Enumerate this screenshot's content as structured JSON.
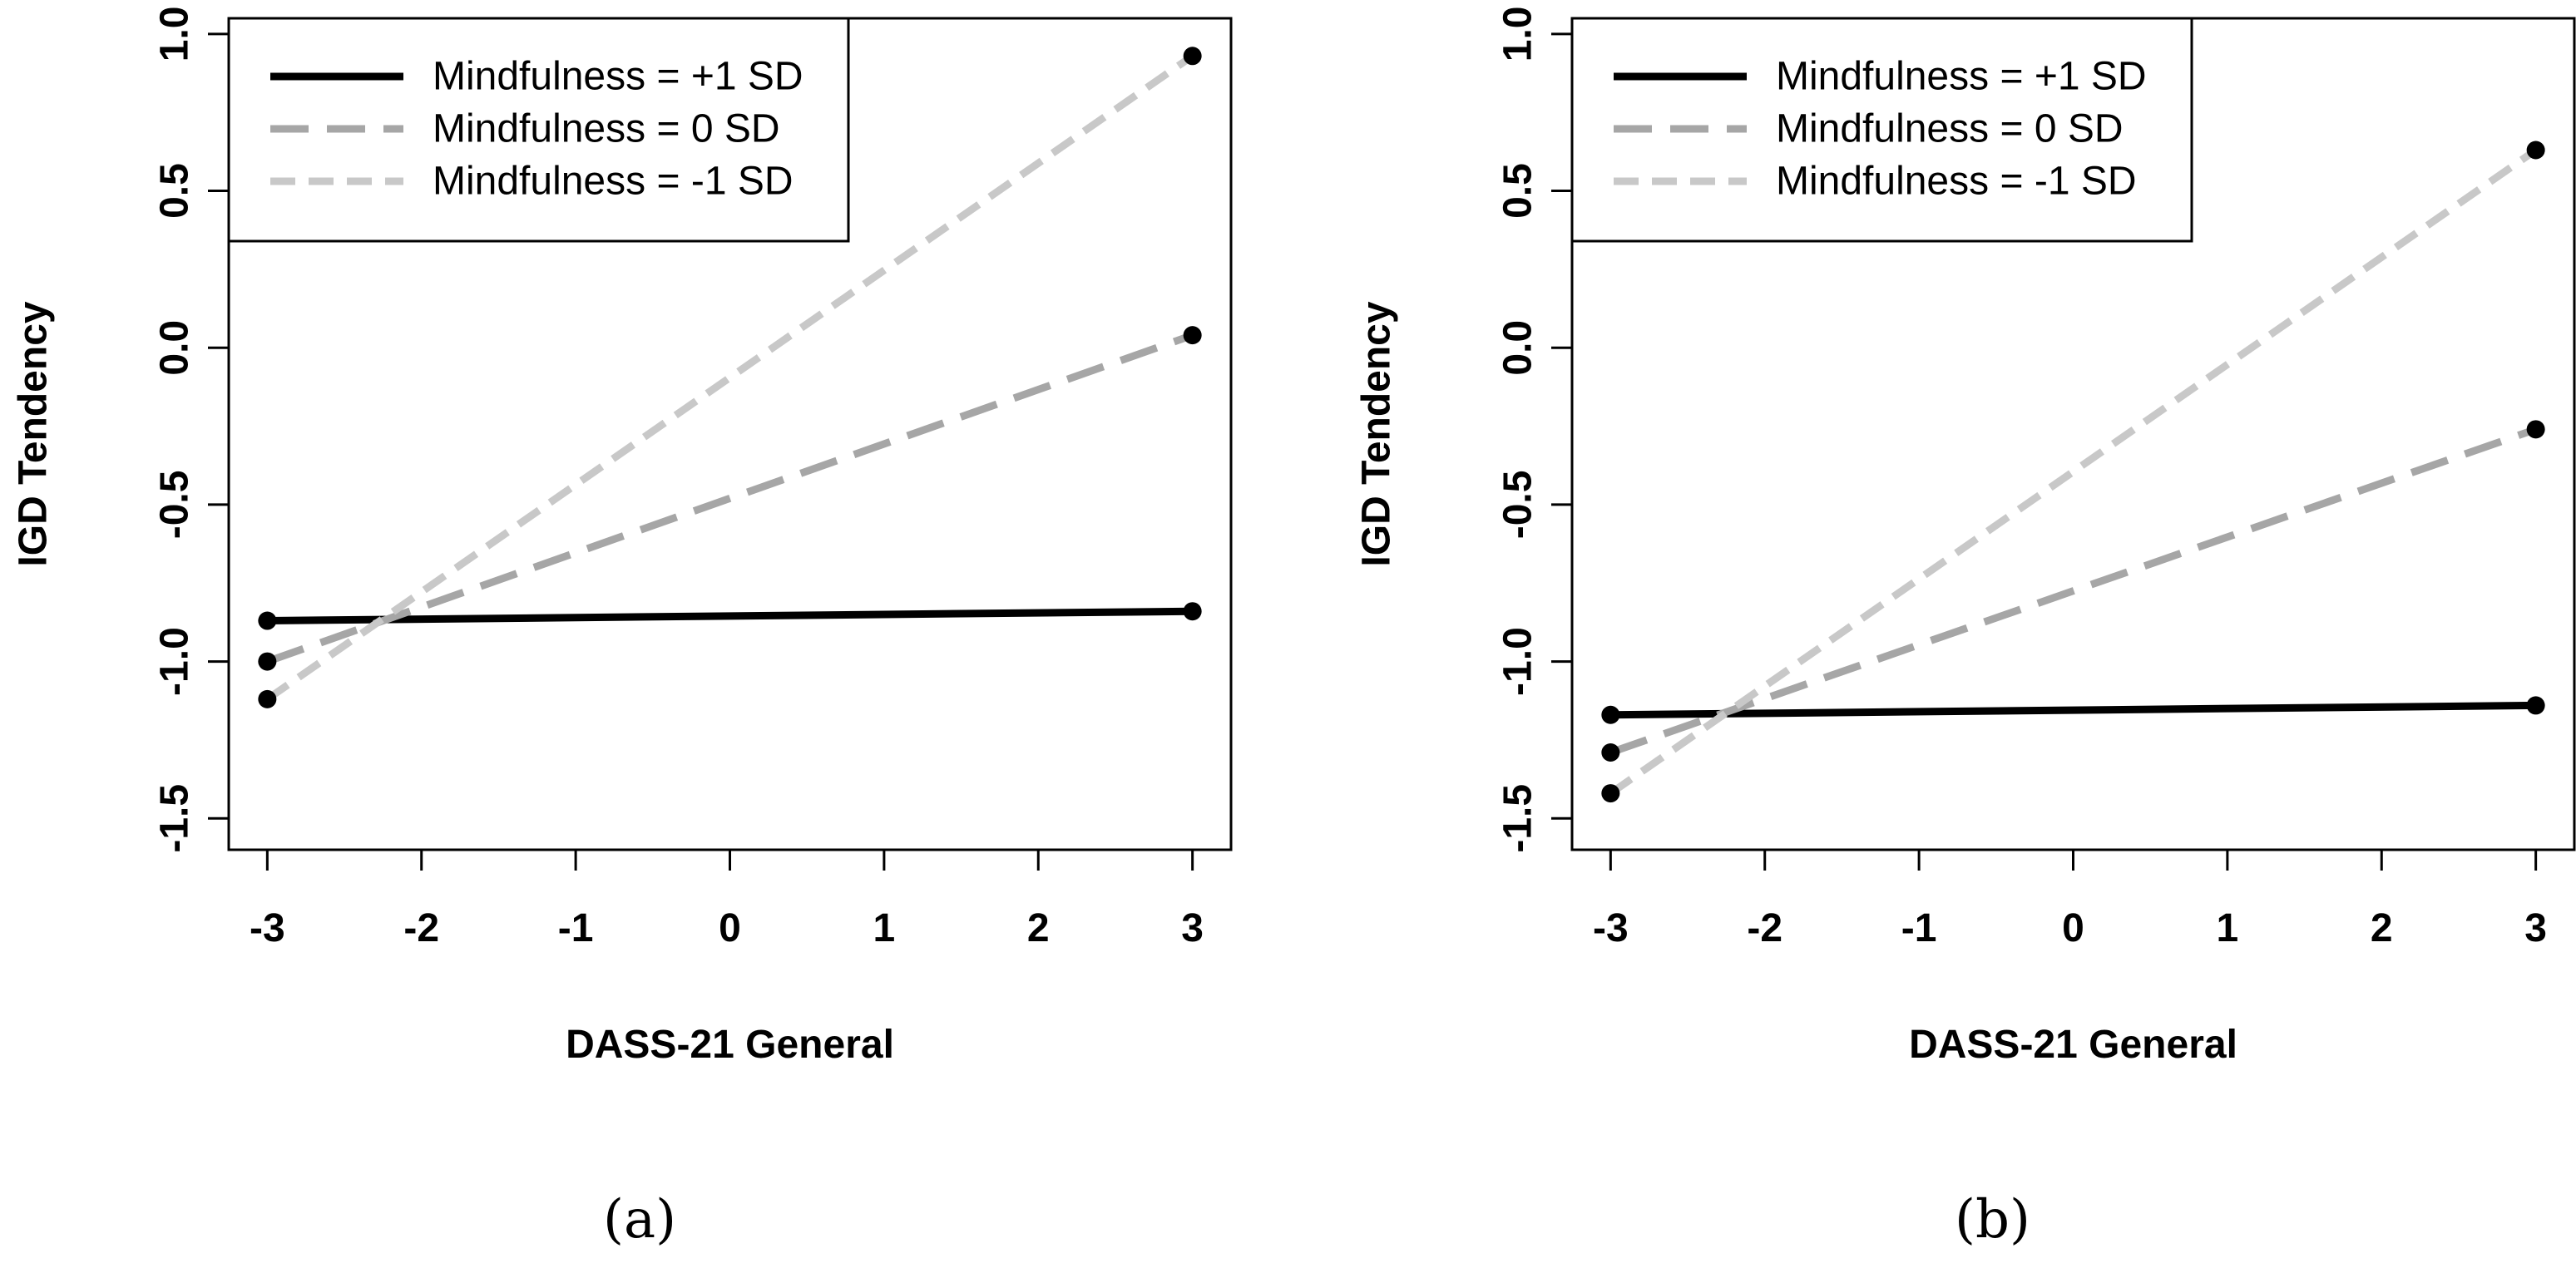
{
  "chart_data": [
    {
      "type": "line",
      "panel_label": "(a)",
      "xlabel": "DASS-21 General",
      "ylabel": "IGD Tendency",
      "xlim": [
        -3.25,
        3.25
      ],
      "ylim": [
        -1.6,
        1.05
      ],
      "xticks": [
        "-3",
        "-2",
        "-1",
        "0",
        "1",
        "2",
        "3"
      ],
      "yticks": [
        "-1.5",
        "-1.0",
        "-0.5",
        "0.0",
        "0.5",
        "1.0"
      ],
      "legend_position": "top-left",
      "series": [
        {
          "name": "Mindfulness = +1 SD",
          "color": "#000000",
          "dash": "solid",
          "x": [
            -3,
            3
          ],
          "values": [
            -0.87,
            -0.84
          ]
        },
        {
          "name": "Mindfulness = 0 SD",
          "color": "#a6a6a6",
          "dash": "long-dash",
          "x": [
            -3,
            3
          ],
          "values": [
            -1.0,
            0.04
          ]
        },
        {
          "name": "Mindfulness = -1 SD",
          "color": "#c8c8c8",
          "dash": "dash",
          "x": [
            -3,
            3
          ],
          "values": [
            -1.12,
            0.93
          ]
        }
      ]
    },
    {
      "type": "line",
      "panel_label": "(b)",
      "xlabel": "DASS-21 General",
      "ylabel": "IGD Tendency",
      "xlim": [
        -3.25,
        3.25
      ],
      "ylim": [
        -1.6,
        1.05
      ],
      "xticks": [
        "-3",
        "-2",
        "-1",
        "0",
        "1",
        "2",
        "3"
      ],
      "yticks": [
        "-1.5",
        "-1.0",
        "-0.5",
        "0.0",
        "0.5",
        "1.0"
      ],
      "legend_position": "top-left",
      "series": [
        {
          "name": "Mindfulness = +1 SD",
          "color": "#000000",
          "dash": "solid",
          "x": [
            -3,
            3
          ],
          "values": [
            -1.17,
            -1.14
          ]
        },
        {
          "name": "Mindfulness = 0 SD",
          "color": "#a6a6a6",
          "dash": "long-dash",
          "x": [
            -3,
            3
          ],
          "values": [
            -1.29,
            -0.26
          ]
        },
        {
          "name": "Mindfulness = -1 SD",
          "color": "#c8c8c8",
          "dash": "dash",
          "x": [
            -3,
            3
          ],
          "values": [
            -1.42,
            0.63
          ]
        }
      ]
    }
  ]
}
